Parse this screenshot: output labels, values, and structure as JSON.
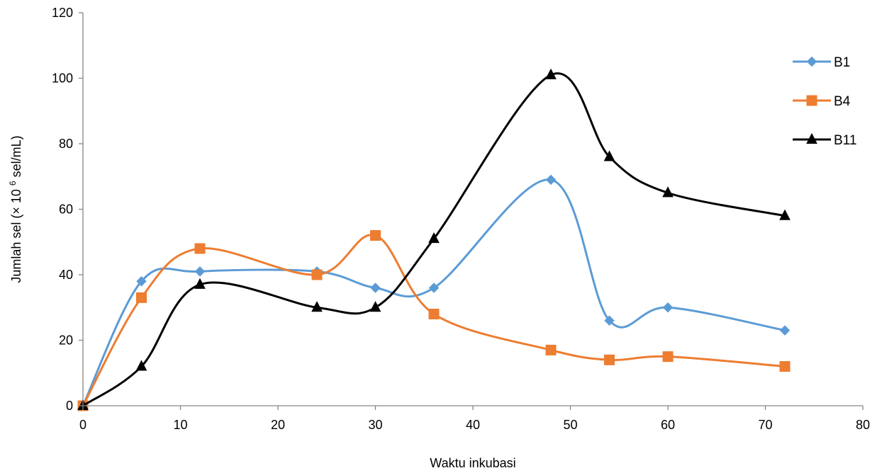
{
  "chart_data": {
    "type": "line",
    "title": "",
    "xlabel": "Waktu inkubasi",
    "ylabel": {
      "prefix": "Jumlah sel (× 10",
      "superscript": "6",
      "suffix": " sel/mL)"
    },
    "xlim": [
      0,
      80
    ],
    "ylim": [
      0,
      120
    ],
    "x_ticks": [
      0,
      10,
      20,
      30,
      40,
      50,
      60,
      70,
      80
    ],
    "y_ticks": [
      0,
      20,
      40,
      60,
      80,
      100,
      120
    ],
    "grid": false,
    "smooth": true,
    "legend_position": "right",
    "x": [
      0,
      6,
      12,
      24,
      30,
      36,
      48,
      54,
      60,
      72
    ],
    "series": [
      {
        "name": "B1",
        "marker": "diamond",
        "color": "#5b9bd5",
        "values": [
          0,
          38,
          41,
          41,
          36,
          36,
          69,
          26,
          30,
          23
        ]
      },
      {
        "name": "B4",
        "marker": "square",
        "color": "#ed7d31",
        "values": [
          0,
          33,
          48,
          40,
          52,
          28,
          17,
          14,
          15,
          12
        ]
      },
      {
        "name": "B11",
        "marker": "triangle",
        "color": "#000000",
        "values": [
          0,
          12,
          37,
          30,
          30,
          51,
          101,
          76,
          65,
          58
        ]
      }
    ]
  }
}
